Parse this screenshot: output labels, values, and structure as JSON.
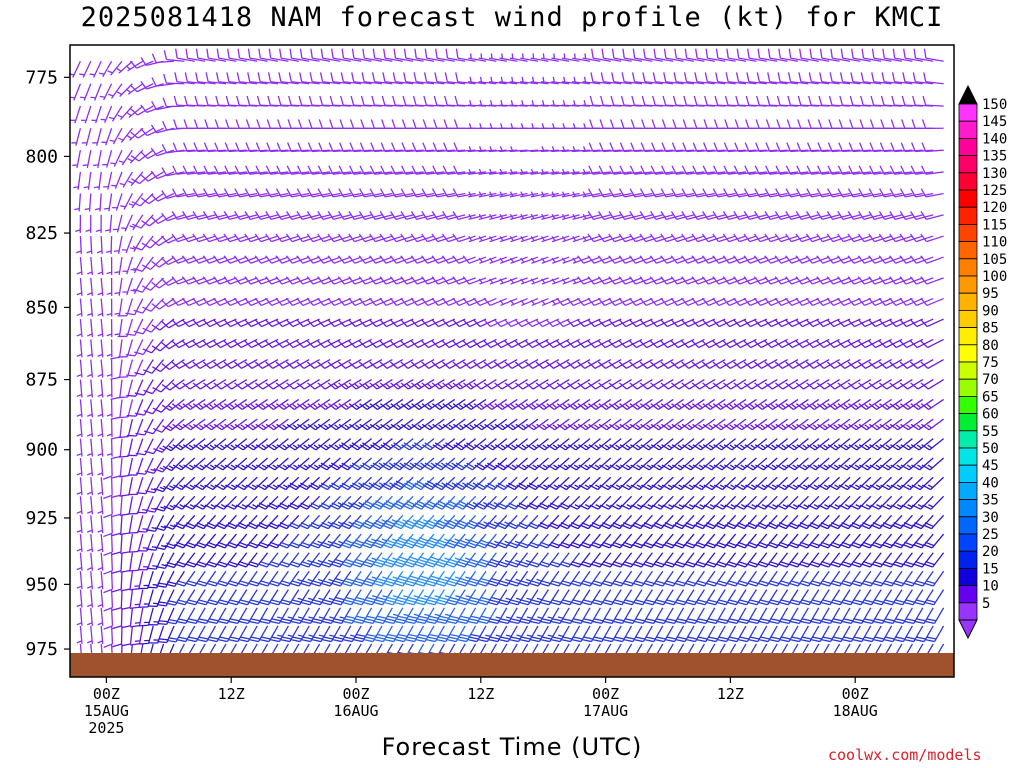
{
  "chart_data": {
    "type": "wind-barb-profile",
    "title": "2025081418 NAM forecast wind profile (kt) for KMCI",
    "xlabel": "Forecast Time (UTC)",
    "ylabel": "",
    "y_ticks": [
      "775",
      "800",
      "825",
      "850",
      "875",
      "900",
      "925",
      "950",
      "975"
    ],
    "y_values": [
      775,
      800,
      825,
      850,
      875,
      900,
      925,
      950,
      975
    ],
    "ylim": [
      765,
      986
    ],
    "y_scale": "log",
    "y_reversed": true,
    "x_range_hours": [
      -3.5,
      81.5
    ],
    "x_ticks": [
      {
        "hour": 0,
        "l1": "00Z",
        "l2": "15AUG",
        "l3": "2025"
      },
      {
        "hour": 12,
        "l1": "12Z",
        "l2": "",
        "l3": ""
      },
      {
        "hour": 24,
        "l1": "00Z",
        "l2": "16AUG",
        "l3": ""
      },
      {
        "hour": 36,
        "l1": "12Z",
        "l2": "",
        "l3": ""
      },
      {
        "hour": 48,
        "l1": "00Z",
        "l2": "17AUG",
        "l3": ""
      },
      {
        "hour": 60,
        "l1": "12Z",
        "l2": "",
        "l3": ""
      },
      {
        "hour": 72,
        "l1": "00Z",
        "l2": "18AUG",
        "l3": ""
      }
    ],
    "colorbar": {
      "labels": [
        "150",
        "145",
        "140",
        "135",
        "130",
        "125",
        "120",
        "115",
        "110",
        "105",
        "100",
        "95",
        "90",
        "85",
        "80",
        "75",
        "70",
        "65",
        "60",
        "55",
        "50",
        "45",
        "40",
        "35",
        "30",
        "25",
        "20",
        "15",
        "10",
        "5"
      ],
      "colors": [
        "#ff33ff",
        "#ff1acc",
        "#ff0099",
        "#ff0066",
        "#ff0033",
        "#ff0000",
        "#ff2200",
        "#ff4400",
        "#ff6600",
        "#ff8000",
        "#ff9900",
        "#ffb300",
        "#ffcc00",
        "#ffee00",
        "#ffff00",
        "#ccff00",
        "#99ff00",
        "#33ff00",
        "#00ee33",
        "#00eeaa",
        "#00e5e5",
        "#00ccff",
        "#00aaff",
        "#0088ff",
        "#0066ff",
        "#0044ff",
        "#0022ee",
        "#1100dd",
        "#6600ee",
        "#9933ff"
      ],
      "top_arrow_color": "#000000",
      "bottom_arrow_color": "#9933ff"
    },
    "ground_color": "#a0522d",
    "wind_field_summary": [
      {
        "region": "boundary layer, hours -3 to 10",
        "speed_kt": "5-10",
        "direction": "southerly"
      },
      {
        "region": "mid-levels (~850-975), hours 6 to 80",
        "speed_kt": "10-25",
        "direction": "southwesterly"
      },
      {
        "region": "core near 925 hPa, hours 25 to 37",
        "speed_kt": "30-40",
        "direction": "southwesterly"
      },
      {
        "region": "upper levels (~775-825)",
        "speed_kt": "5-15",
        "direction": "westerly to northwesterly"
      },
      {
        "region": "~775-850, hours 35 to 47",
        "speed_kt": "5",
        "direction": "variable / light"
      }
    ]
  },
  "credit": "coolwx.com/models"
}
